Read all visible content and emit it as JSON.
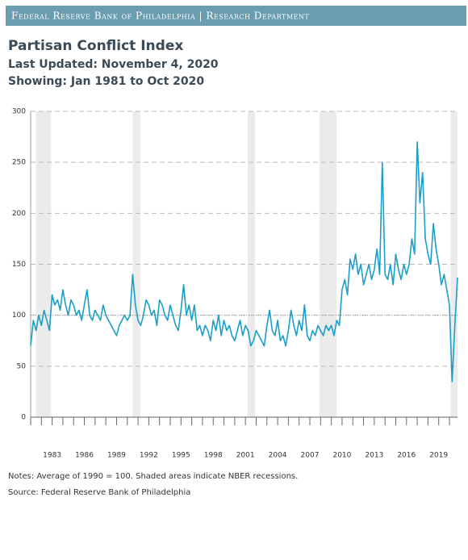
{
  "header": "Federal Reserve Bank of Philadelphia | Research Department",
  "chart_data": {
    "type": "line",
    "title": "Partisan Conflict Index",
    "subtitle": [
      "Last Updated: November 4, 2020",
      "Showing: Jan 1981 to Oct 2020"
    ],
    "notes": "Notes: Average of 1990 = 100. Shaded areas indicate NBER recessions.",
    "source": "Source: Federal Reserve Bank of Philadelphia",
    "color": "#1a9fc9",
    "x": [
      1981,
      1981.25,
      1981.5,
      1981.75,
      1982,
      1982.25,
      1982.5,
      1982.75,
      1983,
      1983.25,
      1983.5,
      1983.75,
      1984,
      1984.25,
      1984.5,
      1984.75,
      1985,
      1985.25,
      1985.5,
      1985.75,
      1986,
      1986.25,
      1986.5,
      1986.75,
      1987,
      1987.25,
      1987.5,
      1987.75,
      1988,
      1988.25,
      1988.5,
      1988.75,
      1989,
      1989.25,
      1989.5,
      1989.75,
      1990,
      1990.25,
      1990.5,
      1990.75,
      1991,
      1991.25,
      1991.5,
      1991.75,
      1992,
      1992.25,
      1992.5,
      1992.75,
      1993,
      1993.25,
      1993.5,
      1993.75,
      1994,
      1994.25,
      1994.5,
      1994.75,
      1995,
      1995.25,
      1995.5,
      1995.75,
      1996,
      1996.25,
      1996.5,
      1996.75,
      1997,
      1997.25,
      1997.5,
      1997.75,
      1998,
      1998.25,
      1998.5,
      1998.75,
      1999,
      1999.25,
      1999.5,
      1999.75,
      2000,
      2000.25,
      2000.5,
      2000.75,
      2001,
      2001.25,
      2001.5,
      2001.75,
      2002,
      2002.25,
      2002.5,
      2002.75,
      2003,
      2003.25,
      2003.5,
      2003.75,
      2004,
      2004.25,
      2004.5,
      2004.75,
      2005,
      2005.25,
      2005.5,
      2005.75,
      2006,
      2006.25,
      2006.5,
      2006.75,
      2007,
      2007.25,
      2007.5,
      2007.75,
      2008,
      2008.25,
      2008.5,
      2008.75,
      2009,
      2009.25,
      2009.5,
      2009.75,
      2010,
      2010.25,
      2010.5,
      2010.75,
      2011,
      2011.25,
      2011.5,
      2011.75,
      2012,
      2012.25,
      2012.5,
      2012.75,
      2013,
      2013.25,
      2013.5,
      2013.75,
      2014,
      2014.25,
      2014.5,
      2014.75,
      2015,
      2015.25,
      2015.5,
      2015.75,
      2016,
      2016.25,
      2016.5,
      2016.75,
      2017,
      2017.25,
      2017.5,
      2017.75,
      2018,
      2018.25,
      2018.5,
      2018.75,
      2019,
      2019.25,
      2019.5,
      2019.75,
      2020,
      2020.25,
      2020.5,
      2020.75
    ],
    "values": [
      70,
      95,
      85,
      100,
      90,
      105,
      95,
      85,
      120,
      110,
      115,
      105,
      125,
      110,
      100,
      115,
      110,
      100,
      105,
      95,
      110,
      125,
      100,
      95,
      105,
      100,
      95,
      110,
      100,
      95,
      90,
      85,
      80,
      90,
      95,
      100,
      95,
      100,
      140,
      110,
      95,
      90,
      100,
      115,
      110,
      100,
      105,
      90,
      115,
      110,
      100,
      95,
      110,
      100,
      90,
      85,
      105,
      130,
      100,
      110,
      95,
      110,
      85,
      90,
      80,
      90,
      85,
      75,
      95,
      85,
      100,
      80,
      95,
      85,
      90,
      80,
      75,
      85,
      95,
      80,
      90,
      85,
      70,
      75,
      85,
      80,
      75,
      70,
      90,
      105,
      85,
      80,
      95,
      75,
      80,
      70,
      85,
      105,
      90,
      80,
      95,
      85,
      110,
      80,
      75,
      85,
      80,
      90,
      85,
      80,
      90,
      85,
      90,
      80,
      95,
      90,
      125,
      135,
      120,
      155,
      145,
      160,
      140,
      150,
      130,
      140,
      150,
      135,
      145,
      165,
      140,
      250,
      140,
      135,
      150,
      130,
      160,
      145,
      135,
      150,
      140,
      150,
      175,
      160,
      270,
      210,
      240,
      175,
      160,
      150,
      190,
      165,
      150,
      130,
      140,
      125,
      110,
      35,
      90,
      137
    ],
    "xlim": [
      1981,
      2020.75
    ],
    "ylim": [
      0,
      300
    ],
    "xticks": [
      1983,
      1986,
      1989,
      1992,
      1995,
      1998,
      2001,
      2004,
      2007,
      2010,
      2013,
      2016,
      2019
    ],
    "xminorticks": [
      1981,
      1982,
      1983,
      1984,
      1985,
      1986,
      1987,
      1988,
      1989,
      1990,
      1991,
      1992,
      1993,
      1994,
      1995,
      1996,
      1997,
      1998,
      1999,
      2000,
      2001,
      2002,
      2003,
      2004,
      2005,
      2006,
      2007,
      2008,
      2009,
      2010,
      2011,
      2012,
      2013,
      2014,
      2015,
      2016,
      2017,
      2018,
      2019,
      2020
    ],
    "yticks": [
      0,
      50,
      100,
      150,
      200,
      250,
      300
    ],
    "reference_line": 100,
    "recessions": [
      [
        1981.5,
        1982.9
      ],
      [
        1990.5,
        1991.2
      ],
      [
        2001.2,
        2001.9
      ],
      [
        2007.9,
        2009.5
      ],
      [
        2020.1,
        2020.75
      ]
    ],
    "grid": true
  }
}
